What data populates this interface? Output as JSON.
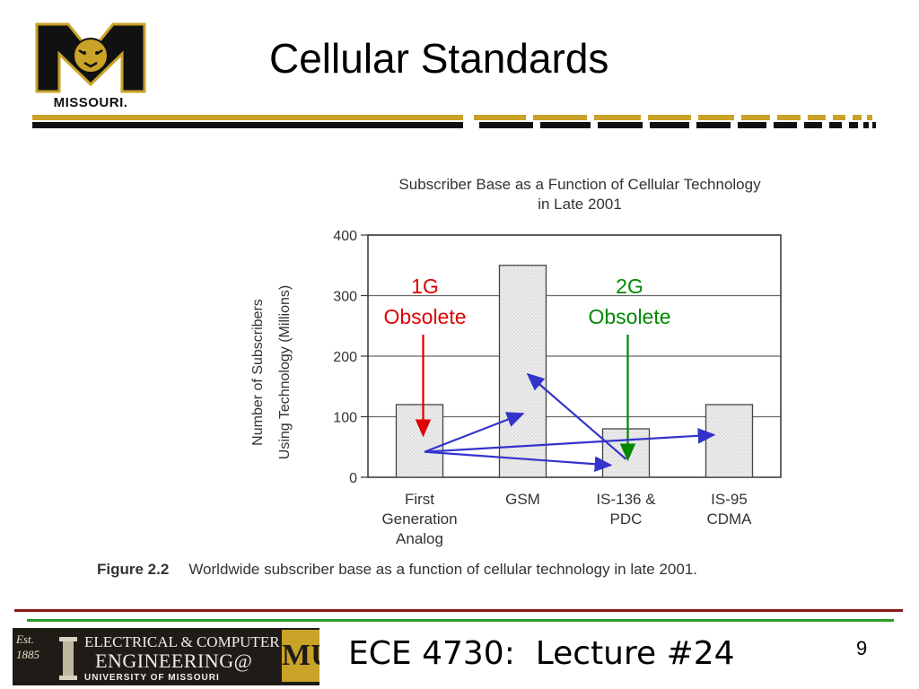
{
  "slide": {
    "title": "Cellular Standards",
    "logo_text": "MISSOURI.",
    "footer_course": "ECE 4730:  Lecture #24",
    "page_number": "9"
  },
  "footer_logo": {
    "est_line1": "Est.",
    "est_line2": "1885",
    "line1": "ELECTRICAL & COMPUTER",
    "line2": "ENGINEERING@",
    "mu": "MU",
    "line3": "UNIVERSITY OF MISSOURI"
  },
  "caption": {
    "figure_label": "Figure 2.2",
    "text": "Worldwide subscriber base as a function of cellular technology in late 2001."
  },
  "chart_data": {
    "type": "bar",
    "title": [
      "Subscriber Base as a Function of Cellular Technology",
      "in Late 2001"
    ],
    "ylabel": [
      "Number of Subscribers",
      "Using Technology (Millions)"
    ],
    "categories": [
      [
        "First",
        "Generation",
        "Analog"
      ],
      [
        "GSM"
      ],
      [
        "IS-136 &",
        "PDC"
      ],
      [
        "IS-95",
        "CDMA"
      ]
    ],
    "values": [
      120,
      350,
      80,
      120
    ],
    "ylim": [
      0,
      400
    ],
    "yticks": [
      0,
      100,
      200,
      300,
      400
    ],
    "grid": true,
    "annotations": [
      {
        "lines": [
          "1G",
          "Obsolete"
        ],
        "color": "#dd0000",
        "points_to": 0
      },
      {
        "lines": [
          "2G",
          "Obsolete"
        ],
        "color": "#008800",
        "points_to": 2
      }
    ],
    "migration_arrows_color": "#3333cc"
  },
  "colors": {
    "gold": "#c9a227",
    "black": "#111111",
    "maroon": "#8b1a1a",
    "green": "#2a9a2a",
    "bar_fill": "#e4e4e4"
  }
}
